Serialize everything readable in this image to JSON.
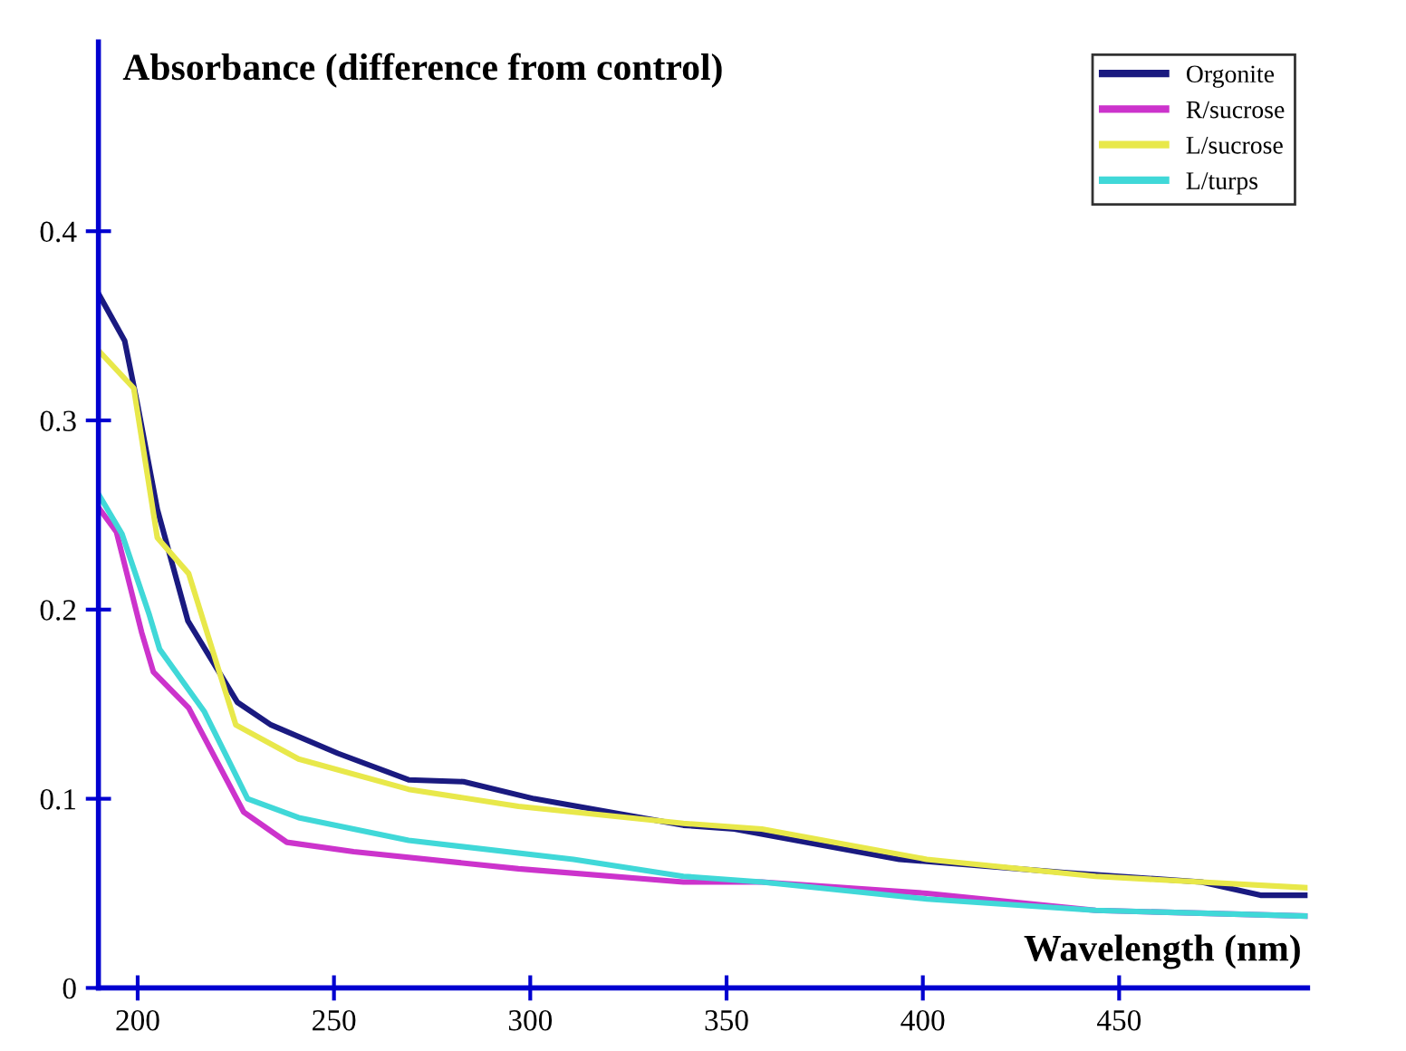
{
  "chart_data": {
    "type": "line",
    "xlabel": "Wavelength (nm)",
    "ylabel": "Absorbance (difference from control)",
    "xlim": [
      190,
      498
    ],
    "ylim": [
      0,
      0.5
    ],
    "xticks": [
      200,
      250,
      300,
      350,
      400,
      450
    ],
    "yticks": [
      0,
      0.1,
      0.2,
      0.3,
      0.4
    ],
    "grid": false,
    "legend": "top right",
    "marker": "none",
    "line_style": "solid",
    "series": [
      {
        "name": "Orgonite",
        "color": "#1a1a80",
        "x": [
          190,
          196.7,
          200,
          205,
          212.8,
          225.4,
          234,
          251,
          269,
          283,
          301,
          339,
          352,
          394,
          436,
          471,
          486,
          497.5
        ],
        "values": [
          0.367,
          0.342,
          0.308,
          0.253,
          0.194,
          0.151,
          0.139,
          0.124,
          0.11,
          0.109,
          0.1,
          0.086,
          0.084,
          0.068,
          0.061,
          0.056,
          0.049,
          0.049
        ]
      },
      {
        "name": "R/sucrose",
        "color": "#cc33cc",
        "x": [
          190,
          194.6,
          201,
          204,
          213,
          227,
          238,
          255,
          297,
          339,
          359,
          401,
          444,
          497.5
        ],
        "values": [
          0.254,
          0.241,
          0.188,
          0.167,
          0.148,
          0.093,
          0.077,
          0.072,
          0.063,
          0.056,
          0.056,
          0.05,
          0.041,
          0.038
        ]
      },
      {
        "name": "L/sucrose",
        "color": "#e8e84a",
        "x": [
          190,
          199,
          205,
          213,
          225,
          241,
          269,
          297,
          339,
          359,
          401,
          444,
          497.5
        ],
        "values": [
          0.337,
          0.317,
          0.238,
          0.219,
          0.139,
          0.121,
          0.105,
          0.096,
          0.087,
          0.084,
          0.068,
          0.059,
          0.053
        ]
      },
      {
        "name": "L/turps",
        "color": "#40d8d8",
        "x": [
          190,
          196,
          203,
          205.6,
          217,
          228,
          241,
          269,
          311,
          339,
          359,
          401,
          444,
          497.5
        ],
        "values": [
          0.261,
          0.24,
          0.197,
          0.179,
          0.146,
          0.1,
          0.09,
          0.078,
          0.068,
          0.059,
          0.056,
          0.047,
          0.041,
          0.038
        ]
      }
    ]
  }
}
